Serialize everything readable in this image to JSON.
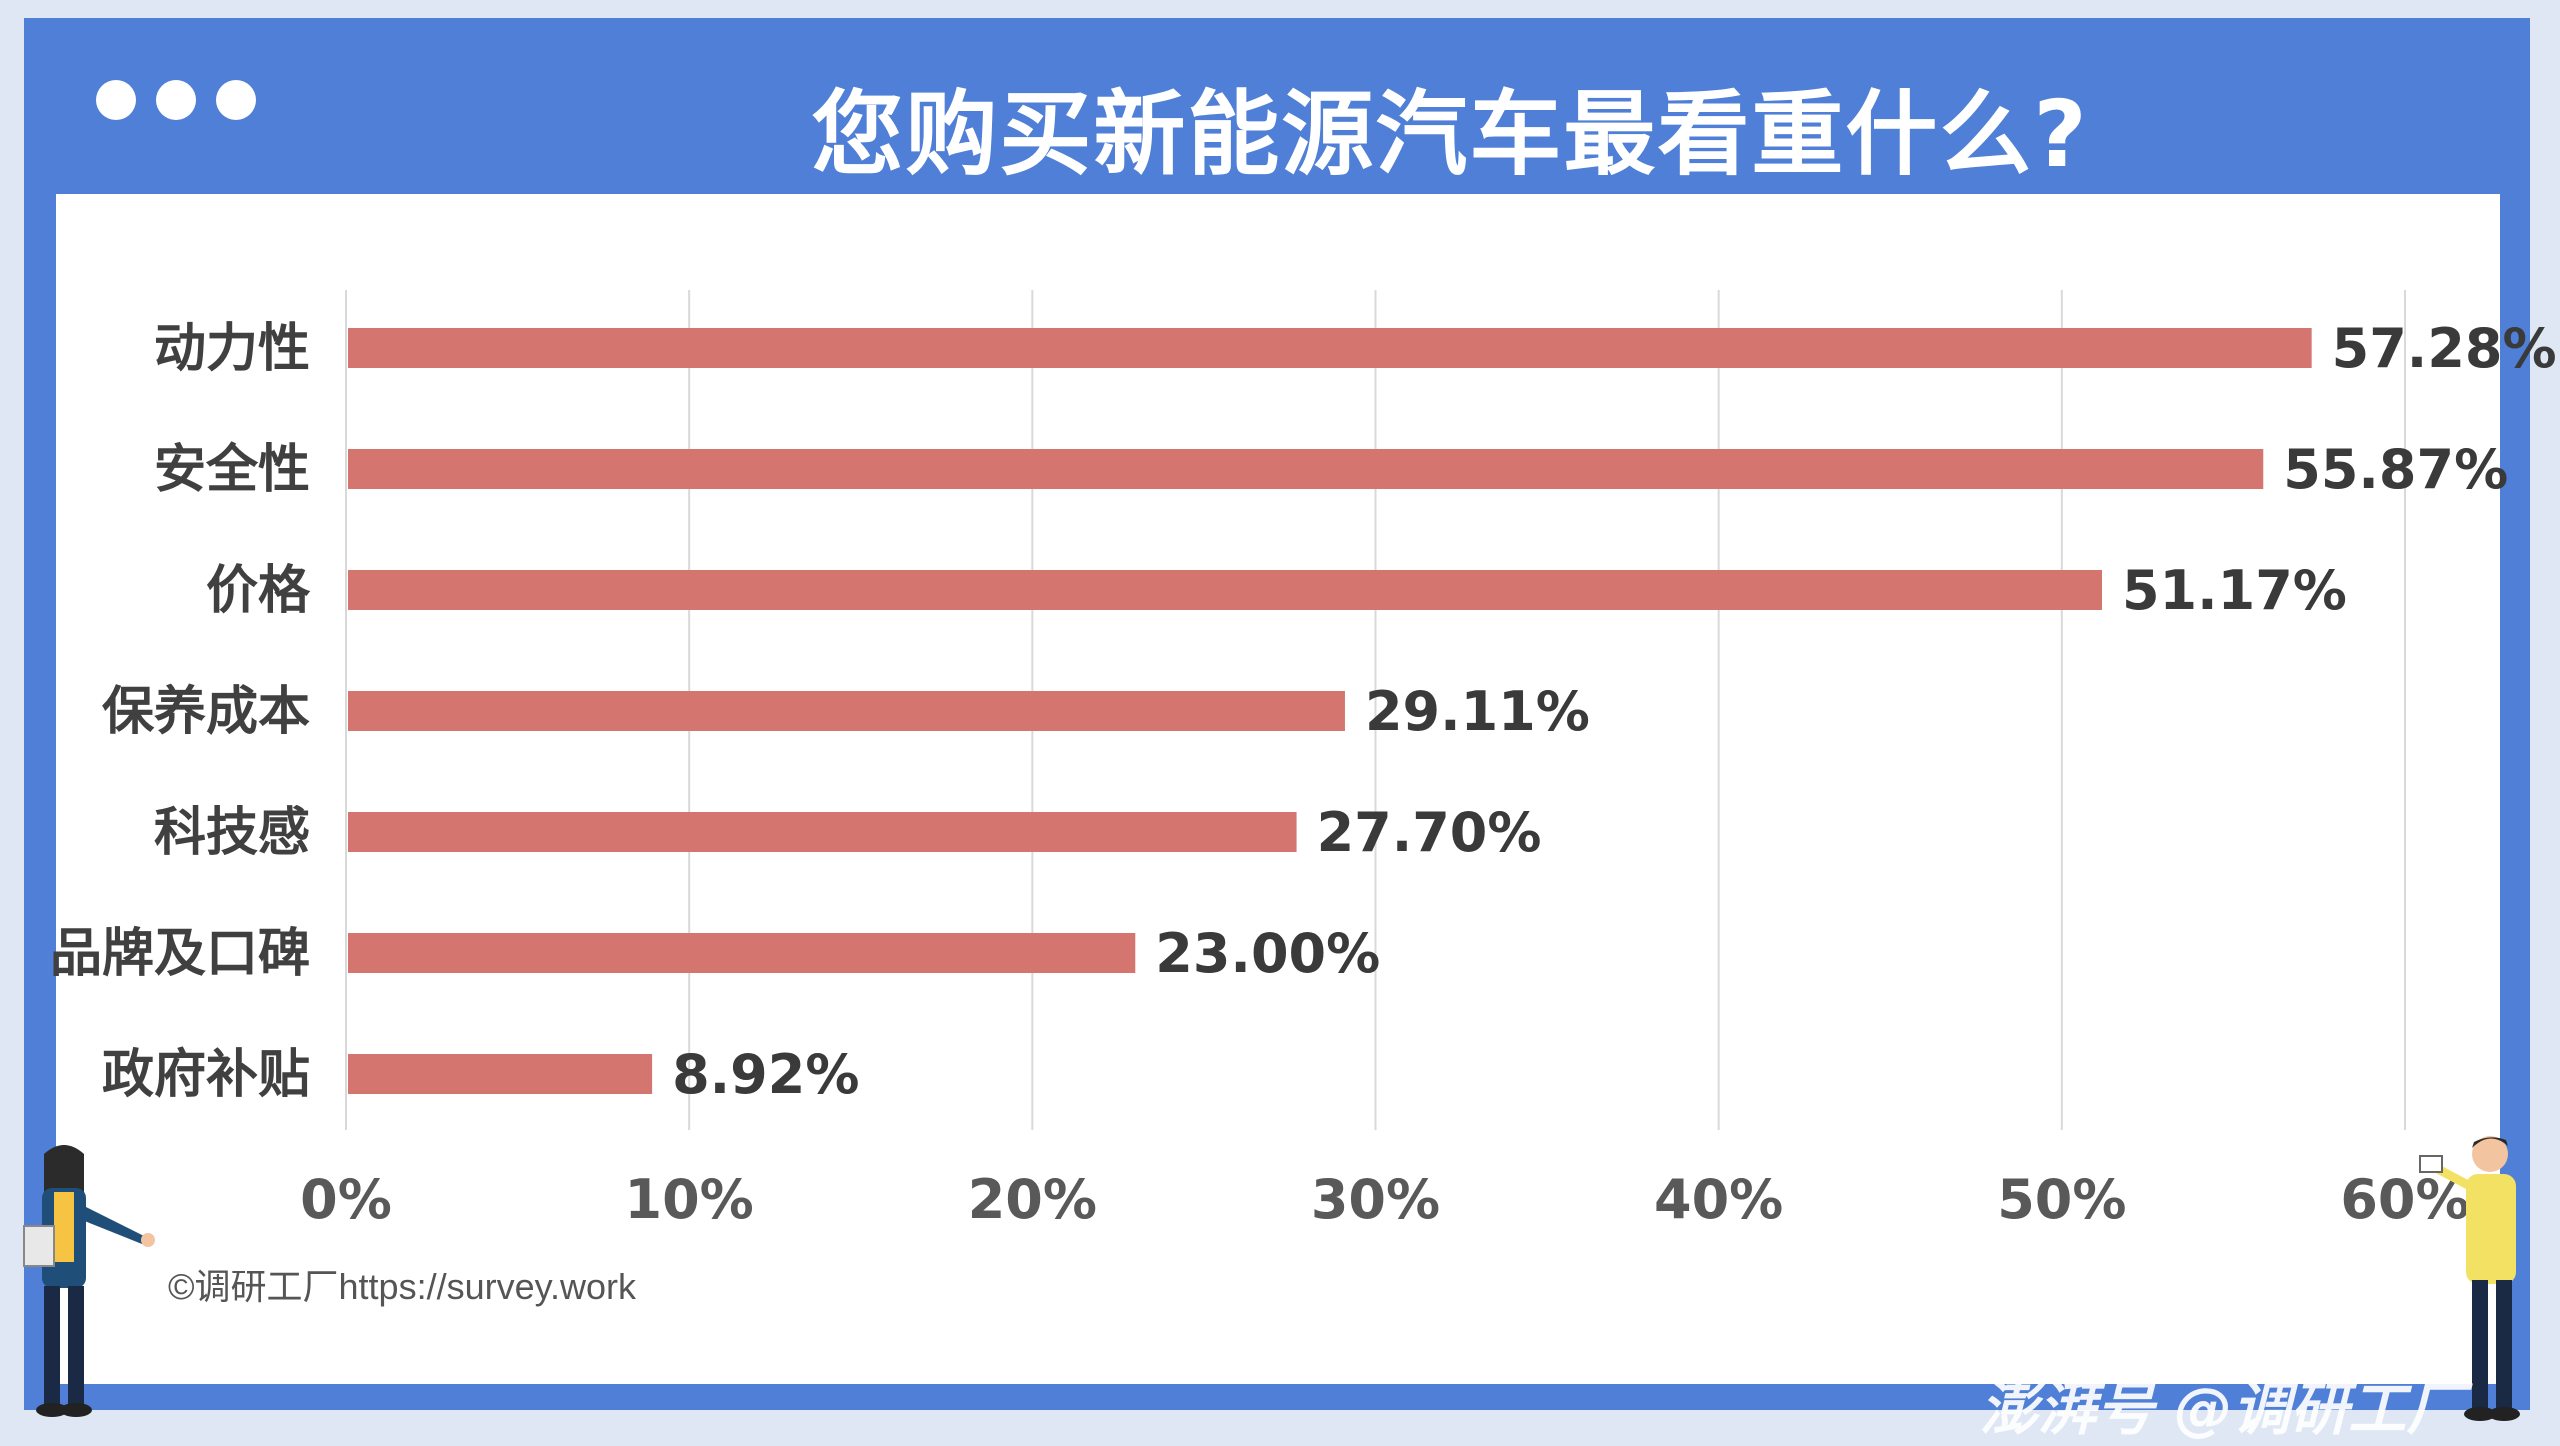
{
  "header": {
    "title": "您购买新能源汽车最看重什么?"
  },
  "chart_data": {
    "type": "bar",
    "orientation": "horizontal",
    "title": "您购买新能源汽车最看重什么?",
    "categories": [
      "动力性",
      "安全性",
      "价格",
      "保养成本",
      "科技感",
      "品牌及口碑",
      "政府补贴"
    ],
    "values": [
      57.28,
      55.87,
      51.17,
      29.11,
      27.7,
      23.0,
      8.92
    ],
    "value_labels": [
      "57.28%",
      "55.87%",
      "51.17%",
      "29.11%",
      "27.70%",
      "23.00%",
      "8.92%"
    ],
    "xlim": [
      0,
      60
    ],
    "x_ticks": [
      0,
      10,
      20,
      30,
      40,
      50,
      60
    ],
    "x_tick_labels": [
      "0%",
      "10%",
      "20%",
      "30%",
      "40%",
      "50%",
      "60%"
    ],
    "grid": "vertical",
    "bar_color": "#d4756f"
  },
  "footer": {
    "source": "©调研工厂https://survey.work",
    "watermark": "澎湃号 @调研工厂"
  },
  "colors": {
    "frame": "#4f7fd6",
    "bar": "#d4756f"
  }
}
